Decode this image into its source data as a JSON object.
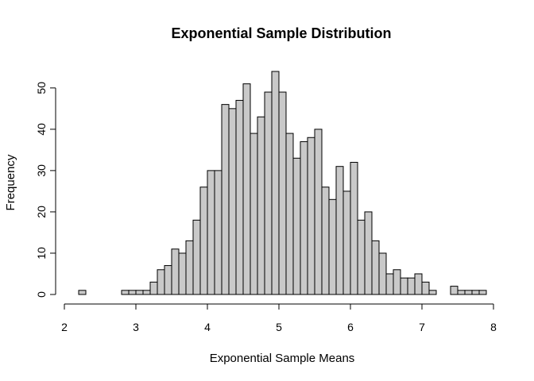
{
  "chart_data": {
    "type": "bar",
    "title": "Exponential Sample Distribution",
    "xlabel": "Exponential Sample Means",
    "ylabel": "Frequency",
    "xlim": [
      2,
      8
    ],
    "ylim": [
      0,
      54
    ],
    "xticks": [
      "2",
      "3",
      "4",
      "5",
      "6",
      "7",
      "8"
    ],
    "yticks": [
      "0",
      "10",
      "20",
      "30",
      "40",
      "50"
    ],
    "bin_width": 0.1,
    "bins_start": [
      2.2,
      2.3,
      2.4,
      2.5,
      2.6,
      2.7,
      2.8,
      2.9,
      3.0,
      3.1,
      3.2,
      3.3,
      3.4,
      3.5,
      3.6,
      3.7,
      3.8,
      3.9,
      4.0,
      4.1,
      4.2,
      4.3,
      4.4,
      4.5,
      4.6,
      4.7,
      4.8,
      4.9,
      5.0,
      5.1,
      5.2,
      5.3,
      5.4,
      5.5,
      5.6,
      5.7,
      5.8,
      5.9,
      6.0,
      6.1,
      6.2,
      6.3,
      6.4,
      6.5,
      6.6,
      6.7,
      6.8,
      6.9,
      7.0,
      7.1,
      7.2,
      7.3,
      7.4,
      7.5,
      7.6,
      7.7,
      7.8
    ],
    "values": [
      1,
      0,
      0,
      0,
      0,
      0,
      1,
      1,
      1,
      1,
      3,
      6,
      7,
      11,
      10,
      13,
      18,
      26,
      30,
      30,
      46,
      45,
      47,
      51,
      39,
      43,
      49,
      54,
      49,
      39,
      33,
      37,
      38,
      40,
      26,
      23,
      31,
      25,
      32,
      18,
      20,
      13,
      10,
      5,
      6,
      4,
      4,
      5,
      3,
      1,
      0,
      0,
      2,
      1,
      1,
      1,
      1
    ],
    "bar_color": "#c9c9c9",
    "grid": false,
    "legend": "none"
  }
}
